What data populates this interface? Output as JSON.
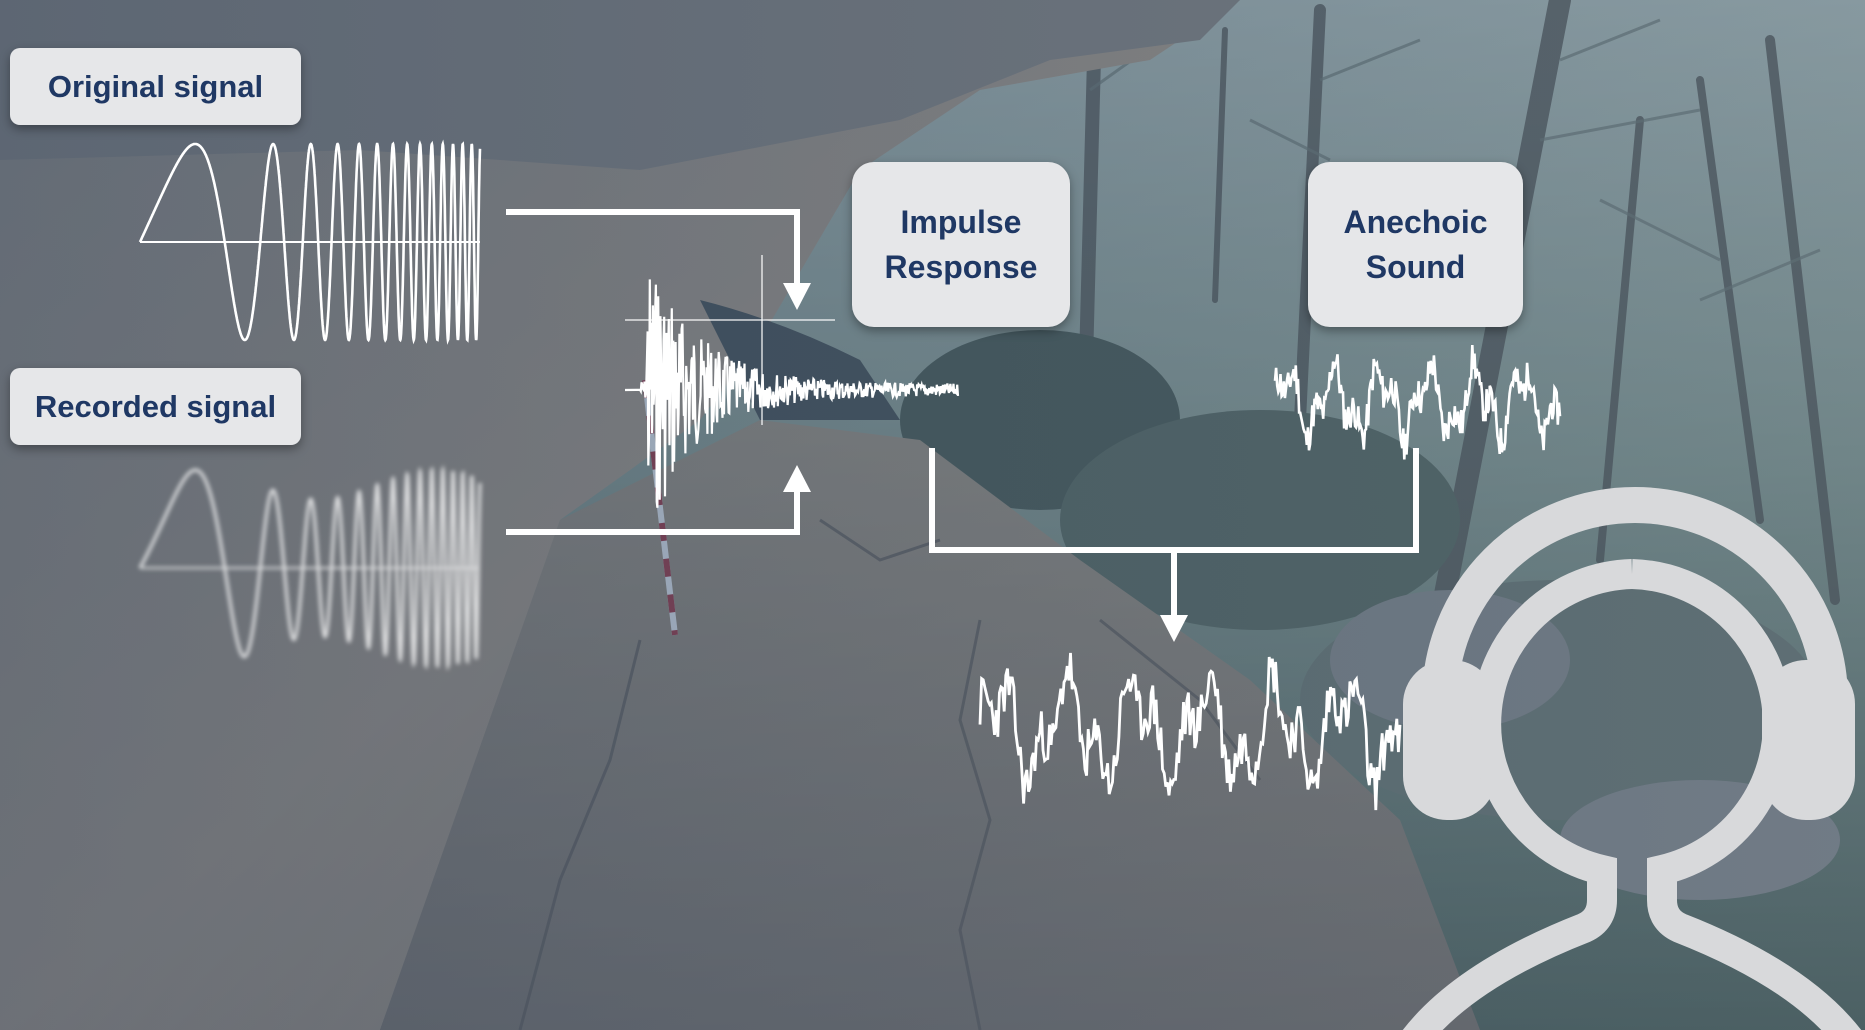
{
  "labels": {
    "original_signal": "Original signal",
    "recorded_signal": "Recorded signal",
    "impulse_response": "Impulse\nResponse",
    "anechoic_sound": "Anechoic\nSound"
  },
  "icons": {
    "listener": "headphones-person-icon"
  },
  "colors": {
    "label_bg": "#e6e7e9",
    "label_text": "#1f3864",
    "wave": "#ffffff",
    "overlay_tint": "#3f5673",
    "icon": "#d8d9db"
  }
}
